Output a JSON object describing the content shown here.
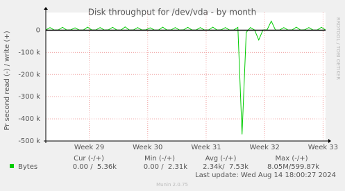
{
  "chart_data": {
    "type": "line",
    "title": "Disk throughput for /dev/vda - by month",
    "y_label": "Pr second read (-) / write (+)",
    "side_label": "RRDTOOL / TOBI OETIKER",
    "x": [
      0,
      0.5,
      1,
      1.5,
      2,
      2.5,
      3,
      3.5,
      4,
      4.5,
      5,
      5.5,
      6,
      6.5,
      7,
      7.5,
      8,
      8.5,
      9,
      9.5,
      10,
      10.5,
      11,
      11.5,
      12,
      12.5,
      13,
      13.5,
      14,
      14.5,
      15,
      15.5,
      16,
      16.5,
      17,
      17.5,
      18,
      18.5,
      19,
      19.5,
      20,
      20.5,
      21,
      21.5,
      22,
      22.5,
      23,
      23.5,
      24,
      24.5,
      25,
      25.5,
      26,
      26.5,
      27,
      27.5,
      28,
      28.5,
      29,
      29.5,
      30,
      30.5,
      31,
      31.5,
      32,
      32.5,
      33,
      33.5
    ],
    "series": [
      {
        "name": "Bytes",
        "color": "#00cc00",
        "values": [
          1000,
          12000,
          1000,
          1500,
          13000,
          1000,
          2000,
          11000,
          1000,
          1000,
          14000,
          1000,
          1500,
          12000,
          1000,
          2000,
          13000,
          1000,
          1000,
          15000,
          1000,
          1500,
          12000,
          1000,
          2000,
          11000,
          1000,
          1000,
          14000,
          1000,
          1500,
          12000,
          1000,
          2000,
          13000,
          1000,
          1000,
          12000,
          1000,
          1500,
          14000,
          1000,
          2000,
          12000,
          1000,
          1000,
          13000,
          -470000,
          -10000,
          12000,
          1000,
          -44000,
          1000,
          2000,
          41000,
          1000,
          1000,
          12000,
          1000,
          1500,
          14000,
          1000,
          2000,
          12000,
          1000,
          1000,
          13000,
          1000
        ]
      }
    ],
    "xlim": [
      0,
      33.5
    ],
    "xticks": [
      {
        "value": 5.2,
        "label": "Week 29"
      },
      {
        "value": 12.2,
        "label": "Week 30"
      },
      {
        "value": 19.2,
        "label": "Week 31"
      },
      {
        "value": 26.2,
        "label": "Week 32"
      },
      {
        "value": 33.2,
        "label": "Week 33"
      }
    ],
    "ylim": [
      -500000,
      80000
    ],
    "yticks": [
      0,
      {
        "value": -100000,
        "label": "-100 k"
      },
      {
        "value": -200000,
        "label": "-200 k"
      },
      {
        "value": -300000,
        "label": "-300 k"
      },
      {
        "value": -400000,
        "label": "-400 k"
      },
      {
        "value": -500000,
        "label": "-500 k"
      }
    ],
    "grid": true,
    "legend": {
      "headers": [
        "Cur (-/+)",
        "Min (-/+)",
        "Avg (-/+)",
        "Max (-/+)"
      ],
      "row": [
        "0.00 /  5.36k",
        "0.00 /  2.31k",
        "2.34k/  7.53k",
        "8.05M/599.87k"
      ]
    },
    "last_update": "Last update: Wed Aug 14 18:00:27 2024",
    "footer": "Munin 2.0.75"
  }
}
